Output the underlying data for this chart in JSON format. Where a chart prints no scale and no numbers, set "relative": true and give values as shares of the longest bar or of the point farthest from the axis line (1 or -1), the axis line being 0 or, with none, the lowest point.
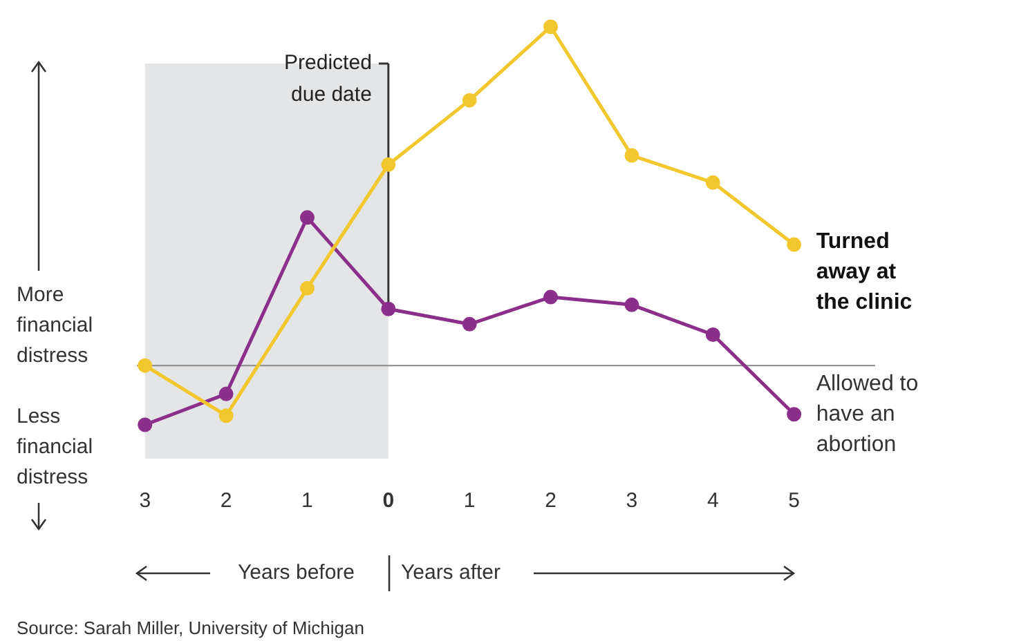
{
  "chart_data": {
    "type": "line",
    "relative": true,
    "x": [
      -3,
      -2,
      -1,
      0,
      1,
      2,
      3,
      4,
      5
    ],
    "xlim": [
      -3.1,
      6
    ],
    "xticks": [
      {
        "value": -3,
        "label": "3"
      },
      {
        "value": -2,
        "label": "2"
      },
      {
        "value": -1,
        "label": "1"
      },
      0,
      1,
      2,
      3,
      4,
      5
    ],
    "tick_labels": "x",
    "marker": "circle",
    "series": [
      {
        "name": "Turned away at the clinic",
        "color": "#f2c72e",
        "values": [
          0,
          -0.148,
          0.228,
          0.593,
          0.783,
          1,
          0.62,
          0.54,
          0.357
        ]
      },
      {
        "name": "Allowed to have an abortion",
        "color": "#8b2f8a",
        "values": [
          -0.175,
          -0.084,
          0.437,
          0.167,
          0.122,
          0.202,
          0.179,
          0.091,
          -0.144
        ]
      }
    ],
    "ref_lines": [
      {
        "axis": "x",
        "value": 0,
        "label": "Predicted due date",
        "color": "#333333"
      }
    ],
    "bands": [
      {
        "axis": "x",
        "from": -3,
        "to": 0,
        "color": "#e4e5e6"
      }
    ],
    "annotations": [
      "More financial distress",
      "Less financial distress",
      "Years before",
      "Years after",
      "Source: Sarah Miller, University of Michigan"
    ]
  }
}
